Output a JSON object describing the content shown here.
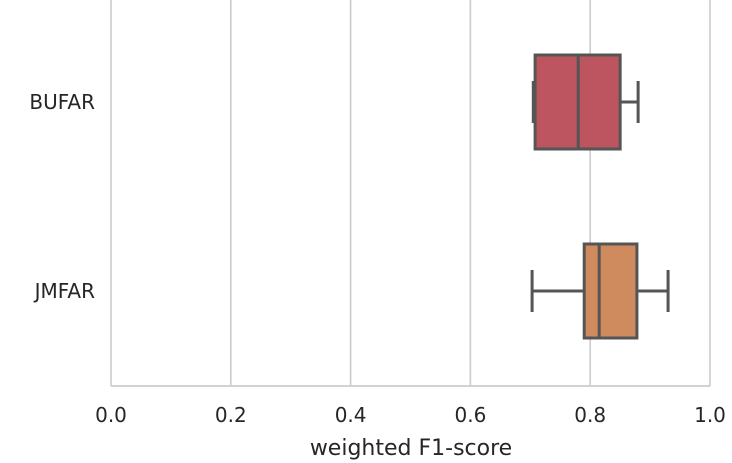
{
  "chart_data": {
    "type": "box",
    "orientation": "horizontal",
    "title": "",
    "xlabel": "weighted F1-score",
    "ylabel": "",
    "xlim": [
      0.0,
      1.0
    ],
    "xticks": [
      "0.0",
      "0.2",
      "0.4",
      "0.6",
      "0.8",
      "1.0"
    ],
    "grid": "vertical",
    "legend": "none",
    "categories": [
      "BUFAR",
      "JMFAR"
    ],
    "boxes": [
      {
        "category": "BUFAR",
        "whisker_low": 0.705,
        "q1": 0.708,
        "median": 0.78,
        "q3": 0.85,
        "whisker_high": 0.88,
        "color": "#bc5560"
      },
      {
        "category": "JMFAR",
        "whisker_low": 0.703,
        "q1": 0.79,
        "median": 0.815,
        "q3": 0.878,
        "whisker_high": 0.93,
        "color": "#cf8a5e"
      }
    ],
    "line_color": "#555555",
    "grid_color": "#cccccc"
  }
}
